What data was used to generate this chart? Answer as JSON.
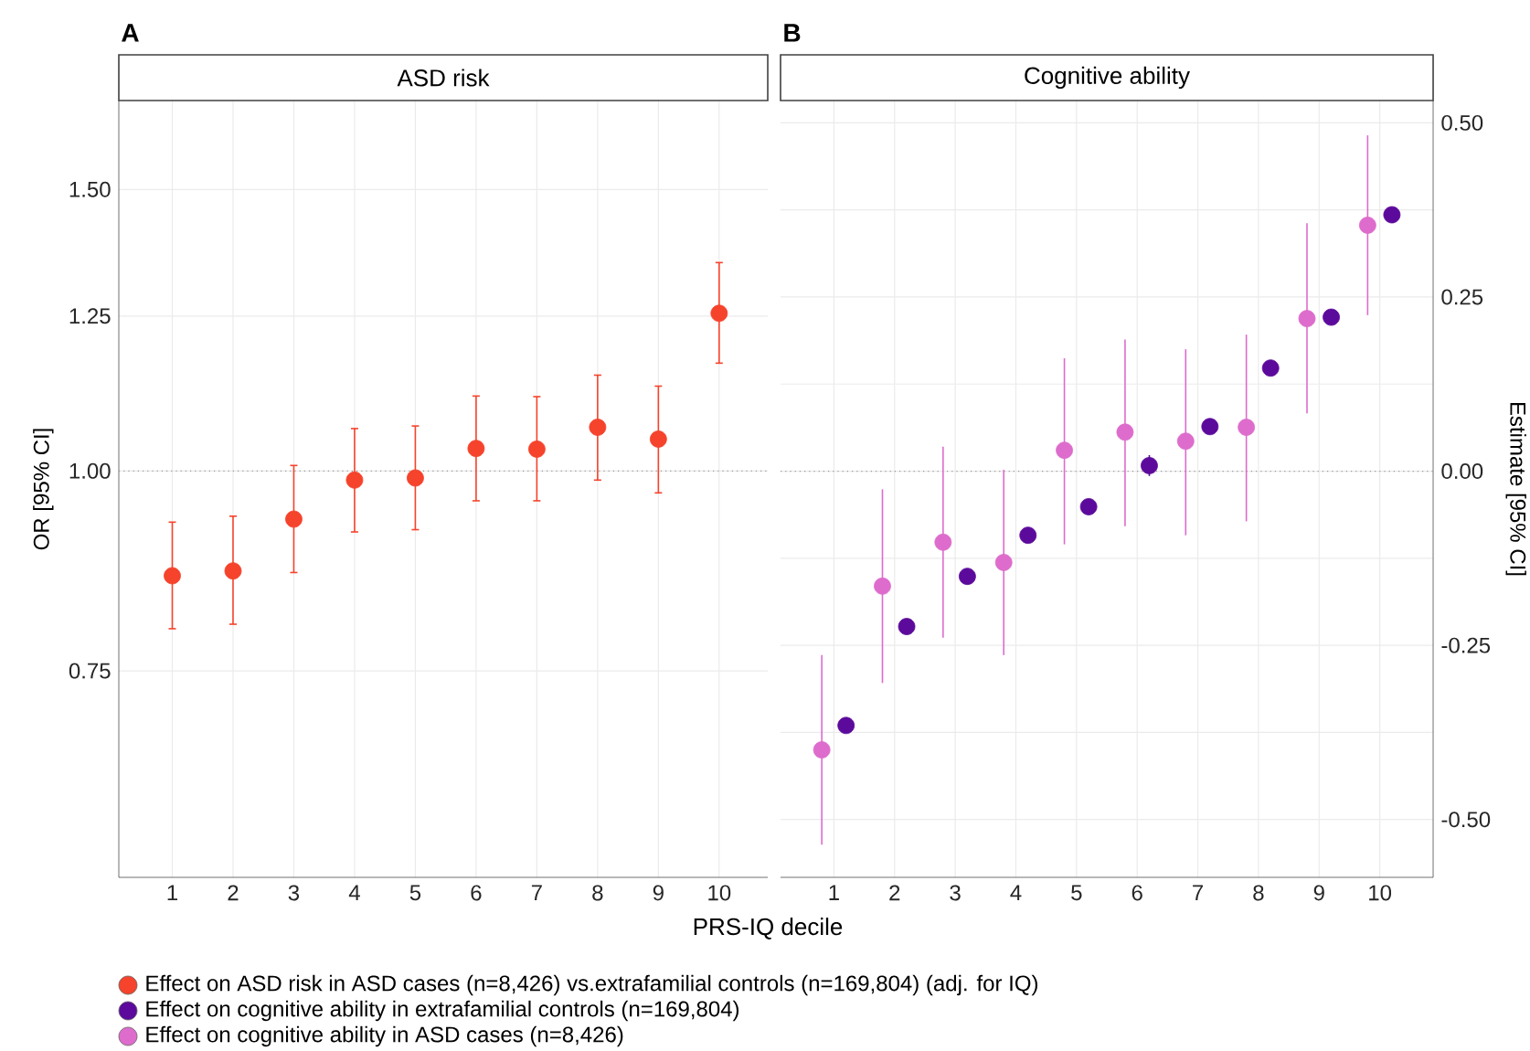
{
  "chart_data": [
    {
      "type": "scatter",
      "title": "ASD risk",
      "ylabel": "OR [95% CI]",
      "annotations": [
        "A"
      ],
      "categories": [
        "1",
        "2",
        "3",
        "4",
        "5",
        "6",
        "7",
        "8",
        "9",
        "10"
      ],
      "series": [
        {
          "name": "Effect on ASD risk in ASD cases (n=8,426) vs.extrafamilial controls (n=169,804) (adj. for IQ)",
          "color": "#f5432c",
          "values": [
            0.86,
            0.866,
            0.933,
            0.987,
            0.99,
            1.033,
            1.032,
            1.065,
            1.047,
            1.255
          ],
          "errors": [
            [
              0.797,
              0.929
            ],
            [
              0.802,
              0.937
            ],
            [
              0.864,
              1.008
            ],
            [
              0.916,
              1.063
            ],
            [
              0.919,
              1.067
            ],
            [
              0.958,
              1.114
            ],
            [
              0.958,
              1.113
            ],
            [
              0.987,
              1.148
            ],
            [
              0.969,
              1.13
            ],
            [
              1.168,
              1.35
            ]
          ]
        }
      ],
      "log": "y",
      "ylim": [
        0.557,
        1.705
      ],
      "yticks": [
        {
          "value": 0.75,
          "label": "0.75"
        },
        {
          "value": 1,
          "label": "1.00"
        },
        {
          "value": 1.25,
          "label": "1.25"
        },
        {
          "value": 1.5,
          "label": "1.50"
        }
      ],
      "ref_lines": [
        {
          "axis": "y",
          "value": 1,
          "color": "#999999",
          "line_style": "dotted"
        }
      ],
      "grid": true,
      "legend": "bottom"
    },
    {
      "type": "scatter",
      "title": "Cognitive ability",
      "xlabel": "PRS-IQ decile",
      "ylabel": "Estimate [95% CI]",
      "annotations": [
        "B"
      ],
      "categories": [
        "1",
        "2",
        "3",
        "4",
        "5",
        "6",
        "7",
        "8",
        "9",
        "10"
      ],
      "series": [
        {
          "name": "Effect on cognitive ability in extrafamilial controls (n=169,804)",
          "color": "#5c0a9b",
          "values": [
            -0.365,
            -0.223,
            -0.151,
            -0.092,
            -0.051,
            0.008,
            0.064,
            0.148,
            0.221,
            0.368
          ],
          "errors": [
            null,
            null,
            null,
            null,
            null,
            [
              -0.007,
              0.023
            ],
            null,
            null,
            null,
            null
          ]
        },
        {
          "name": "Effect on cognitive ability in ASD cases (n=8,426)",
          "color": "#dd6ccc",
          "values": [
            -0.4,
            -0.165,
            -0.102,
            -0.131,
            0.03,
            0.056,
            0.043,
            0.063,
            0.219,
            0.353
          ],
          "errors": [
            [
              -0.536,
              -0.264
            ],
            [
              -0.304,
              -0.026
            ],
            [
              -0.239,
              0.035
            ],
            [
              -0.264,
              0.002
            ],
            [
              -0.105,
              0.162
            ],
            [
              -0.079,
              0.189
            ],
            [
              -0.092,
              0.175
            ],
            [
              -0.072,
              0.196
            ],
            [
              0.083,
              0.356
            ],
            [
              0.224,
              0.482
            ]
          ]
        }
      ],
      "ylim": [
        -0.583,
        0.532
      ],
      "yticks": [
        {
          "value": -0.5,
          "label": "-0.50"
        },
        {
          "value": -0.25,
          "label": "-0.25"
        },
        {
          "value": 0,
          "label": "0.00"
        },
        {
          "value": 0.25,
          "label": "0.25"
        },
        {
          "value": 0.5,
          "label": "0.50"
        }
      ],
      "ref_lines": [
        {
          "axis": "y",
          "value": 0,
          "color": "#999999",
          "line_style": "dotted"
        }
      ],
      "grid": true,
      "legend": "bottom"
    }
  ]
}
